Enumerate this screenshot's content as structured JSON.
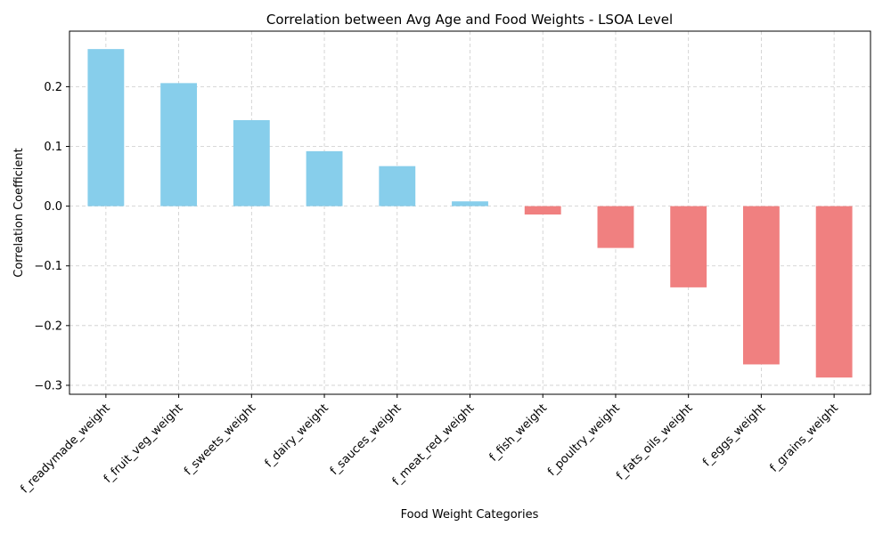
{
  "chart_data": {
    "type": "bar",
    "title": "Correlation between Avg Age and Food Weights - LSOA Level",
    "xlabel": "Food Weight Categories",
    "ylabel": "Correlation Coefficient",
    "categories": [
      "f_readymade_weight",
      "f_fruit_veg_weight",
      "f_sweets_weight",
      "f_dairy_weight",
      "f_sauces_weight",
      "f_meat_red_weight",
      "f_fish_weight",
      "f_poultry_weight",
      "f_fats_oils_weight",
      "f_eggs_weight",
      "f_grains_weight"
    ],
    "values": [
      0.263,
      0.206,
      0.144,
      0.092,
      0.067,
      0.008,
      -0.014,
      -0.07,
      -0.136,
      -0.265,
      -0.287
    ],
    "ylim": [
      -0.315,
      0.293
    ],
    "yticks": [
      -0.3,
      -0.2,
      -0.1,
      0.0,
      0.1,
      0.2
    ],
    "ytick_labels": [
      "−0.3",
      "−0.2",
      "−0.1",
      "0.0",
      "0.1",
      "0.2"
    ],
    "grid": true,
    "colors": {
      "positive": "#87ceeb",
      "negative": "#f08080",
      "grid": "#cccccc",
      "axis": "#000000"
    }
  }
}
